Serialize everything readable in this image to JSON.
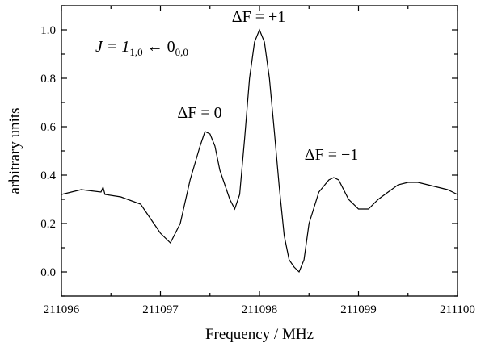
{
  "chart_data": {
    "type": "line",
    "xlabel": "Frequency / MHz",
    "ylabel": "arbitrary units",
    "xlim": [
      211096,
      211100
    ],
    "ylim": [
      -0.1,
      1.1
    ],
    "x_ticks": [
      "211096",
      "211097",
      "211098",
      "211099",
      "211100"
    ],
    "y_ticks": [
      "0.0",
      "0.2",
      "0.4",
      "0.6",
      "0.8",
      "1.0"
    ],
    "grid": false,
    "annotations": {
      "transition": {
        "main": "J = 1",
        "sub1": "1,0",
        "arrow": " ← 0",
        "sub2": "0,0"
      },
      "peak_minus": "ΔF = −1",
      "peak_zero": "ΔF = 0",
      "peak_plus": "ΔF = +1"
    },
    "series": [
      {
        "x": [
          211096.0,
          211096.2,
          211096.4,
          211096.42,
          211096.44,
          211096.6,
          211096.8,
          211096.9,
          211097.0,
          211097.1,
          211097.2,
          211097.3,
          211097.4,
          211097.45,
          211097.5,
          211097.55,
          211097.6,
          211097.7,
          211097.75,
          211097.8,
          211097.85,
          211097.9,
          211097.95,
          211098.0,
          211098.05,
          211098.1,
          211098.15,
          211098.2,
          211098.25,
          211098.3,
          211098.35,
          211098.4,
          211098.45,
          211098.5,
          211098.6,
          211098.7,
          211098.75,
          211098.8,
          211098.9,
          211099.0,
          211099.1,
          211099.2,
          211099.3,
          211099.4,
          211099.5,
          211099.6,
          211099.7,
          211099.8,
          211099.9,
          211100.0
        ],
        "y": [
          0.32,
          0.34,
          0.33,
          0.35,
          0.32,
          0.31,
          0.28,
          0.22,
          0.16,
          0.12,
          0.2,
          0.38,
          0.52,
          0.58,
          0.57,
          0.52,
          0.42,
          0.3,
          0.26,
          0.32,
          0.55,
          0.8,
          0.95,
          1.0,
          0.95,
          0.8,
          0.58,
          0.35,
          0.15,
          0.05,
          0.02,
          0.0,
          0.05,
          0.2,
          0.33,
          0.38,
          0.39,
          0.38,
          0.3,
          0.26,
          0.26,
          0.3,
          0.33,
          0.36,
          0.37,
          0.37,
          0.36,
          0.35,
          0.34,
          0.32
        ]
      }
    ]
  }
}
